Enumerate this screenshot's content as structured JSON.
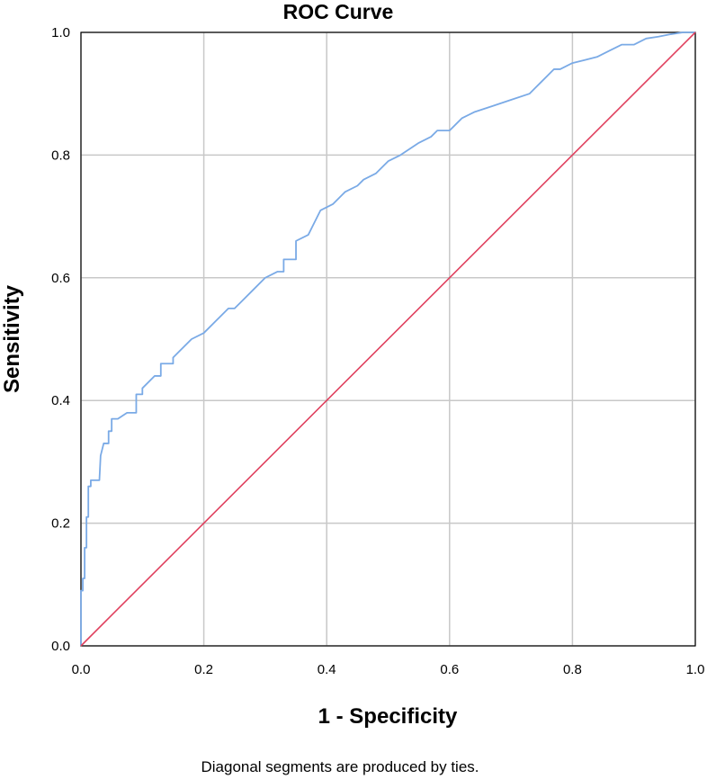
{
  "chart_data": {
    "type": "line",
    "title": "ROC Curve",
    "xlabel": "1 - Specificity",
    "ylabel": "Sensitivity",
    "footnote": "Diagonal segments are produced by ties.",
    "xlim": [
      0.0,
      1.0
    ],
    "ylim": [
      0.0,
      1.0
    ],
    "x_ticks": [
      "0.0",
      "0.2",
      "0.4",
      "0.6",
      "0.8",
      "1.0"
    ],
    "y_ticks": [
      "0.0",
      "0.2",
      "0.4",
      "0.6",
      "0.8",
      "1.0"
    ],
    "grid": true,
    "legend": "none",
    "series": [
      {
        "color": "#7aaae6",
        "x": [
          0.0,
          0.0,
          0.003,
          0.003,
          0.006,
          0.006,
          0.009,
          0.009,
          0.012,
          0.012,
          0.016,
          0.016,
          0.03,
          0.032,
          0.032,
          0.037,
          0.045,
          0.045,
          0.05,
          0.05,
          0.06,
          0.075,
          0.09,
          0.09,
          0.1,
          0.1,
          0.12,
          0.13,
          0.13,
          0.15,
          0.15,
          0.16,
          0.18,
          0.2,
          0.22,
          0.24,
          0.25,
          0.26,
          0.28,
          0.3,
          0.32,
          0.33,
          0.33,
          0.35,
          0.35,
          0.37,
          0.39,
          0.41,
          0.43,
          0.45,
          0.46,
          0.48,
          0.5,
          0.52,
          0.55,
          0.57,
          0.58,
          0.6,
          0.62,
          0.64,
          0.67,
          0.7,
          0.73,
          0.74,
          0.75,
          0.76,
          0.77,
          0.78,
          0.8,
          0.82,
          0.84,
          0.86,
          0.88,
          0.9,
          0.92,
          0.94,
          0.96,
          0.98,
          1.0
        ],
        "y": [
          0.0,
          0.09,
          0.09,
          0.11,
          0.11,
          0.16,
          0.16,
          0.21,
          0.21,
          0.26,
          0.26,
          0.27,
          0.27,
          0.31,
          0.31,
          0.33,
          0.33,
          0.35,
          0.35,
          0.37,
          0.37,
          0.38,
          0.38,
          0.41,
          0.41,
          0.42,
          0.44,
          0.44,
          0.46,
          0.46,
          0.47,
          0.48,
          0.5,
          0.51,
          0.53,
          0.55,
          0.55,
          0.56,
          0.58,
          0.6,
          0.61,
          0.61,
          0.63,
          0.63,
          0.66,
          0.67,
          0.71,
          0.72,
          0.74,
          0.75,
          0.76,
          0.77,
          0.79,
          0.8,
          0.82,
          0.83,
          0.84,
          0.84,
          0.86,
          0.87,
          0.88,
          0.89,
          0.9,
          0.91,
          0.92,
          0.93,
          0.94,
          0.94,
          0.95,
          0.955,
          0.96,
          0.97,
          0.98,
          0.98,
          0.99,
          0.993,
          0.997,
          1.0,
          1.0
        ]
      },
      {
        "color": "#e0405e",
        "x": [
          0.0,
          1.0
        ],
        "y": [
          0.0,
          1.0
        ]
      }
    ]
  }
}
